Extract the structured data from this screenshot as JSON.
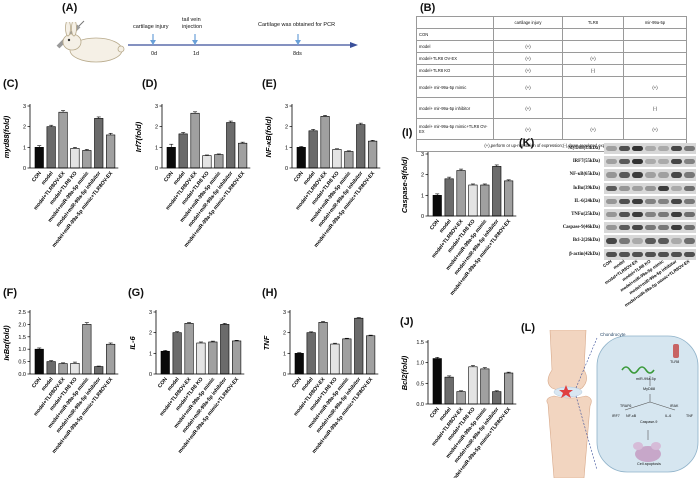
{
  "labels": {
    "A": "(A)",
    "B": "(B)",
    "C": "(C)",
    "D": "(D)",
    "E": "(E)",
    "F": "(F)",
    "G": "(G)",
    "H": "(H)",
    "I": "(I)",
    "J": "(J)",
    "K": "(K)",
    "L": "(L)"
  },
  "timeline": {
    "events": [
      {
        "text": "cartilage injury",
        "day": "0d"
      },
      {
        "text": "tail vein injection",
        "day": "1d"
      },
      {
        "text": "Cartilage was obtained for PCR",
        "day": "8ds"
      }
    ]
  },
  "design_table": {
    "headers": [
      "",
      "cartilage injury",
      "TLR8",
      "mir-99a-5p"
    ],
    "rows": [
      [
        "CON",
        "",
        "",
        ""
      ],
      [
        "model",
        "(+)",
        "",
        ""
      ],
      [
        "model+TLR8 OV-EX",
        "(+)",
        "(+)",
        ""
      ],
      [
        "model+TLR8 KO",
        "(+)",
        "(-)",
        ""
      ],
      [
        "model+ mir-99a-5p mimic",
        "(+)",
        "",
        "(+)"
      ],
      [
        "model+ mir-99a-5p inhibitor",
        "(+)",
        "",
        "(-)"
      ],
      [
        "model+ mir-99a-5p mimic+TLR8 OV-EX",
        "(+)",
        "(+)",
        "(+)"
      ]
    ],
    "footnote": "(+),perform or up-regulation of expression;(-),down-regulated expression"
  },
  "groups_full": [
    "CON",
    "model",
    "model+TLR8OV-EX",
    "model+TLR8 KO",
    "model+miR-99a-5p mimic",
    "model+miR-99a-5p inhibitor",
    "model+miR-99a-5p mimic+TLR8OV-EX"
  ],
  "groups_short": [
    "CON",
    "model",
    "model+TLR8OV-EX",
    "model+TLR8 KO",
    "model+miR-99a-5p mimic",
    "model+miR-99a-5p inhibitor",
    "model+miR-99a-5p mimic+TLR8OV-EX"
  ],
  "chart_data": [
    {
      "id": "C",
      "type": "bar",
      "ylabel": "myd88(fold)",
      "ylim": [
        0,
        3
      ],
      "yticks": [
        "0",
        "1",
        "2",
        "3"
      ],
      "values": [
        1.0,
        2.0,
        2.7,
        0.95,
        0.85,
        2.4,
        1.6
      ],
      "errors": [
        0.08,
        0.07,
        0.08,
        0.05,
        0.05,
        0.07,
        0.08
      ]
    },
    {
      "id": "D",
      "type": "bar",
      "ylabel": "Irf7(fold)",
      "ylim": [
        0,
        3
      ],
      "yticks": [
        "0",
        "1",
        "2",
        "3"
      ],
      "values": [
        1.0,
        1.65,
        2.65,
        0.6,
        0.65,
        2.2,
        1.2
      ],
      "errors": [
        0.15,
        0.07,
        0.07,
        0.03,
        0.03,
        0.07,
        0.05
      ]
    },
    {
      "id": "E",
      "type": "bar",
      "ylabel": "NF-κB(fold)",
      "ylim": [
        0,
        3
      ],
      "yticks": [
        "0",
        "1",
        "2",
        "3"
      ],
      "values": [
        1.0,
        1.8,
        2.5,
        0.9,
        0.8,
        2.1,
        1.3
      ],
      "errors": [
        0.04,
        0.07,
        0.05,
        0.03,
        0.03,
        0.07,
        0.04
      ]
    },
    {
      "id": "F",
      "type": "bar",
      "ylabel": "IκBα(fold)",
      "ylim": [
        0,
        2.5
      ],
      "yticks": [
        "0.0",
        "0.5",
        "1.0",
        "1.5",
        "2.0",
        "2.5"
      ],
      "values": [
        1.0,
        0.5,
        0.42,
        0.43,
        2.0,
        0.3,
        1.2
      ],
      "errors": [
        0.05,
        0.04,
        0.03,
        0.05,
        0.07,
        0.02,
        0.05
      ]
    },
    {
      "id": "G",
      "type": "bar",
      "ylabel": "IL-6",
      "ylim": [
        0,
        3
      ],
      "yticks": [
        "0",
        "1",
        "2",
        "3"
      ],
      "values": [
        1.1,
        2.0,
        2.45,
        1.5,
        1.55,
        2.4,
        1.6
      ],
      "errors": [
        0.04,
        0.05,
        0.04,
        0.05,
        0.04,
        0.05,
        0.03
      ]
    },
    {
      "id": "H",
      "type": "bar",
      "ylabel": "TNF",
      "ylim": [
        0,
        3
      ],
      "yticks": [
        "0",
        "1",
        "2",
        "3"
      ],
      "values": [
        1.0,
        2.0,
        2.5,
        1.45,
        1.7,
        2.7,
        1.85
      ],
      "errors": [
        0.03,
        0.04,
        0.04,
        0.04,
        0.03,
        0.03,
        0.03
      ]
    },
    {
      "id": "I",
      "type": "bar",
      "ylabel": "Caspase-9(fold)",
      "ylim": [
        0,
        3
      ],
      "yticks": [
        "0",
        "1",
        "2",
        "3"
      ],
      "values": [
        1.0,
        1.8,
        2.2,
        1.5,
        1.5,
        2.4,
        1.7
      ],
      "errors": [
        0.07,
        0.08,
        0.07,
        0.05,
        0.05,
        0.07,
        0.05
      ]
    },
    {
      "id": "J",
      "type": "bar",
      "ylabel": "Bcl2(fold)",
      "ylim": [
        0,
        1.5
      ],
      "yticks": [
        "0.0",
        "0.5",
        "1.0",
        "1.5"
      ],
      "values": [
        1.1,
        0.65,
        0.3,
        0.9,
        0.85,
        0.3,
        0.75
      ],
      "errors": [
        0.03,
        0.03,
        0.02,
        0.03,
        0.03,
        0.02,
        0.02
      ]
    }
  ],
  "blot": {
    "proteins": [
      "MyD88(33kDa)",
      "IRF7(55kDa)",
      "NF-κB(65kDa)",
      "IκBα(39kDa)",
      "IL-6(24kDa)",
      "TNFα(25kDa)",
      "Caspase-9(46kDa)",
      "Bcl-2(26kDa)",
      "β-actin(42kDa)"
    ],
    "intensity": [
      [
        0.35,
        0.75,
        0.9,
        0.3,
        0.3,
        0.8,
        0.55
      ],
      [
        0.35,
        0.7,
        0.9,
        0.3,
        0.3,
        0.8,
        0.5
      ],
      [
        0.4,
        0.7,
        0.85,
        0.35,
        0.35,
        0.8,
        0.55
      ],
      [
        0.7,
        0.4,
        0.35,
        0.4,
        0.85,
        0.3,
        0.6
      ],
      [
        0.4,
        0.75,
        0.85,
        0.5,
        0.5,
        0.8,
        0.55
      ],
      [
        0.4,
        0.75,
        0.85,
        0.5,
        0.55,
        0.85,
        0.6
      ],
      [
        0.4,
        0.7,
        0.8,
        0.55,
        0.55,
        0.85,
        0.6
      ],
      [
        0.8,
        0.55,
        0.3,
        0.7,
        0.7,
        0.3,
        0.6
      ],
      [
        0.75,
        0.75,
        0.75,
        0.75,
        0.75,
        0.75,
        0.75
      ]
    ]
  },
  "diagram": {
    "chondrocyte": "Chondrocyte",
    "tlr8": "TLR8",
    "mirna": "miR-99a-5p",
    "myd88": "MyD88",
    "traf6": "TRAF6",
    "irak": "IRAK",
    "irf7": "IRF7",
    "nfkb": "NF-κB",
    "caspase": "Caspase-9",
    "il6": "IL-6",
    "tnf": "TNF",
    "apoptosis": "Cell apoptosis"
  },
  "colors": {
    "black": "#0a0a0a",
    "grey_dark": "#6b6b6b",
    "grey_mid": "#a0a0a0",
    "grey_light": "#e4e4e4",
    "cell_blue": "#cfe3ef",
    "timeline_blue": "#3a6fb0"
  }
}
